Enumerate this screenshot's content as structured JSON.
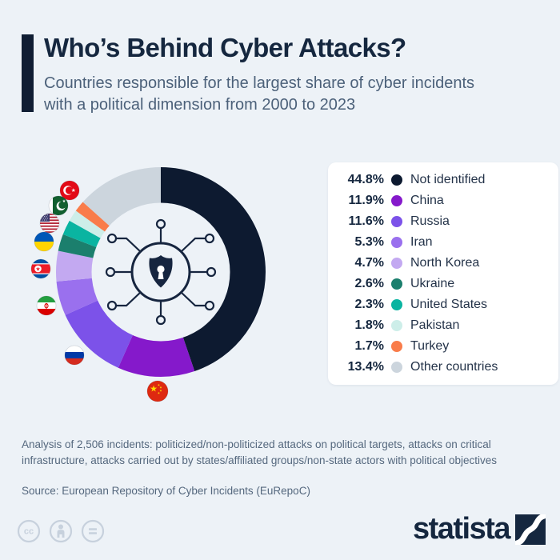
{
  "header": {
    "title": "Who’s Behind Cyber Attacks?",
    "subtitle": "Countries responsible for the largest share of cyber incidents with a political dimension from 2000 to 2023"
  },
  "chart_data": {
    "type": "pie",
    "subtype": "donut",
    "title": "Countries responsible for the largest share of cyber incidents with a political dimension from 2000 to 2023",
    "unit": "%",
    "direction": "clockwise",
    "start_angle_deg": 0,
    "legend_position": "right",
    "center_icon": "shield-network-icon",
    "series": [
      {
        "label": "Not identified",
        "value": 44.8,
        "color": "#0d1a30"
      },
      {
        "label": "China",
        "value": 11.9,
        "color": "#8519cb",
        "flag": "china"
      },
      {
        "label": "Russia",
        "value": 11.6,
        "color": "#7c52e9",
        "flag": "russia"
      },
      {
        "label": "Iran",
        "value": 5.3,
        "color": "#9a70ee",
        "flag": "iran"
      },
      {
        "label": "North Korea",
        "value": 4.7,
        "color": "#c3a9f1",
        "flag": "north-korea"
      },
      {
        "label": "Ukraine",
        "value": 2.6,
        "color": "#1b7f6d",
        "flag": "ukraine"
      },
      {
        "label": "United States",
        "value": 2.3,
        "color": "#0ab4a1",
        "flag": "united-states"
      },
      {
        "label": "Pakistan",
        "value": 1.8,
        "color": "#cdeee9",
        "flag": "pakistan"
      },
      {
        "label": "Turkey",
        "value": 1.7,
        "color": "#f97c4a",
        "flag": "turkey"
      },
      {
        "label": "Other countries",
        "value": 13.4,
        "color": "#ccd5dd"
      }
    ]
  },
  "footnote": "Analysis of 2,506 incidents: politicized/non-politicized attacks on political targets, attacks on critical infrastructure, attacks carried out by states/affiliated groups/non-state actors with political objectives",
  "source": "Source: European Repository of Cyber Incidents (EuRepoC)",
  "branding": {
    "logo_text": "statista",
    "license_icons": [
      "cc-icon",
      "cc-by-person-icon",
      "cc-nd-equals-icon"
    ]
  },
  "colors": {
    "background": "#edf2f7",
    "card": "#ffffff",
    "title": "#15273f",
    "subtitle": "#4c617a",
    "muted": "#55687e",
    "accent_dark": "#15273f"
  }
}
